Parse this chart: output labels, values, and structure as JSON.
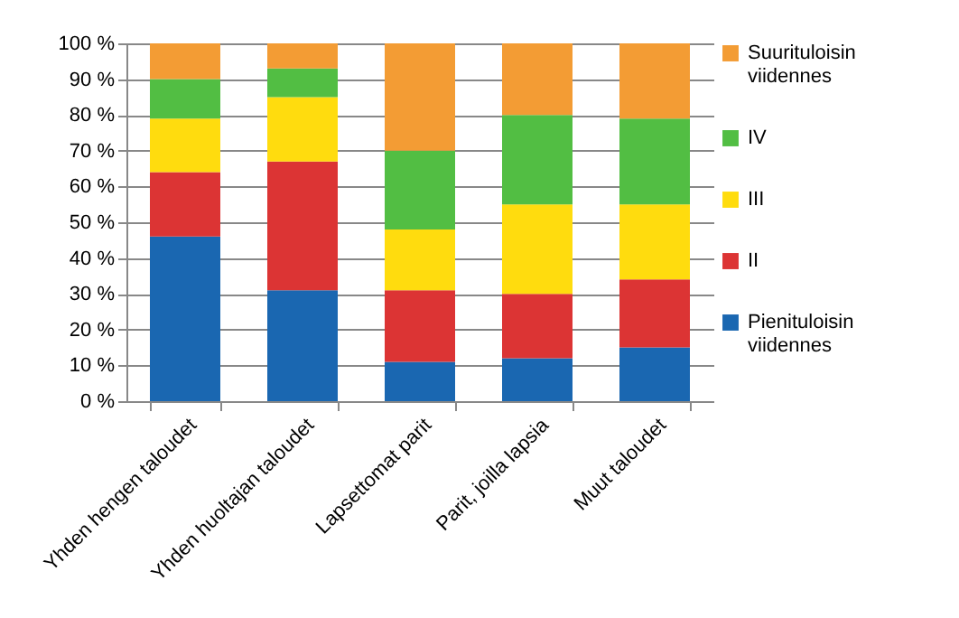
{
  "chart_data": {
    "type": "bar",
    "stacked": true,
    "categories": [
      "Yhden hengen taloudet",
      "Yhden huoltajan  taloudet",
      "Lapsettomat parit",
      "Parit, joilla lapsia",
      "Muut taloudet"
    ],
    "series": [
      {
        "name": "Pienituloisin viidennes",
        "color": "#1a67b1",
        "values": [
          46,
          31,
          11,
          12,
          15
        ]
      },
      {
        "name": "II",
        "color": "#dc3434",
        "values": [
          18,
          36,
          20,
          18,
          19
        ]
      },
      {
        "name": "III",
        "color": "#ffdc0e",
        "values": [
          15,
          18,
          17,
          25,
          21
        ]
      },
      {
        "name": "IV",
        "color": "#52be43",
        "values": [
          11,
          8,
          22,
          25,
          24
        ]
      },
      {
        "name": "Suurituloisin viidennes",
        "color": "#f39c34",
        "values": [
          10,
          7,
          30,
          20,
          21
        ]
      }
    ],
    "ylim": [
      0,
      100
    ],
    "yticks": [
      {
        "value": 0,
        "label": "0 %"
      },
      {
        "value": 10,
        "label": "10 %"
      },
      {
        "value": 20,
        "label": "20 %"
      },
      {
        "value": 30,
        "label": "30 %"
      },
      {
        "value": 40,
        "label": "40 %"
      },
      {
        "value": 50,
        "label": "50 %"
      },
      {
        "value": 60,
        "label": "60 %"
      },
      {
        "value": 70,
        "label": "70 %"
      },
      {
        "value": 80,
        "label": "80 %"
      },
      {
        "value": 90,
        "label": "90 %"
      },
      {
        "value": 100,
        "label": "100 %"
      }
    ],
    "grid": "y",
    "legend": "right"
  }
}
